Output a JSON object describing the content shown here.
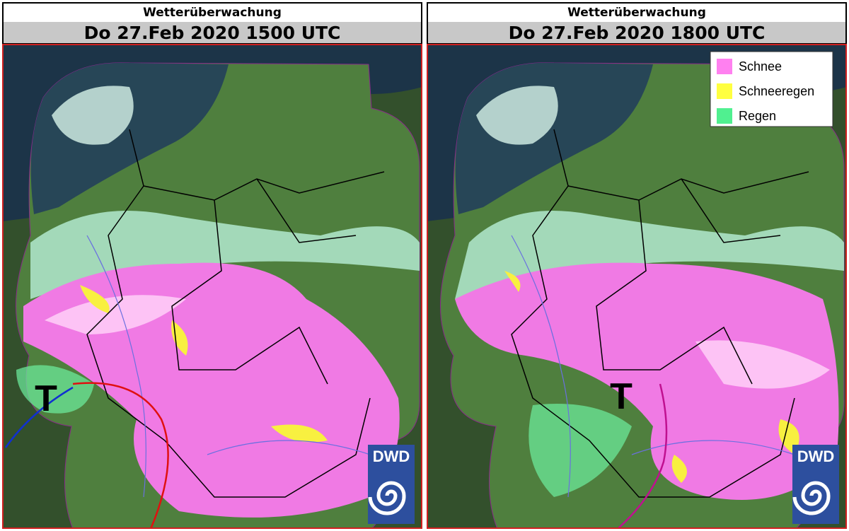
{
  "panels": [
    {
      "title": "Wetterüberwachung",
      "subtitle": "Do 27.Feb 2020 1500 UTC",
      "low_label": "T",
      "logo": "DWD"
    },
    {
      "title": "Wetterüberwachung",
      "subtitle": "Do 27.Feb 2020 1800 UTC",
      "low_label": "T",
      "logo": "DWD",
      "legend": [
        {
          "label": "Schnee",
          "color": "#ff80f0"
        },
        {
          "label": "Schneeregen",
          "color": "#ffff40"
        },
        {
          "label": "Regen",
          "color": "#50f090"
        }
      ]
    }
  ]
}
